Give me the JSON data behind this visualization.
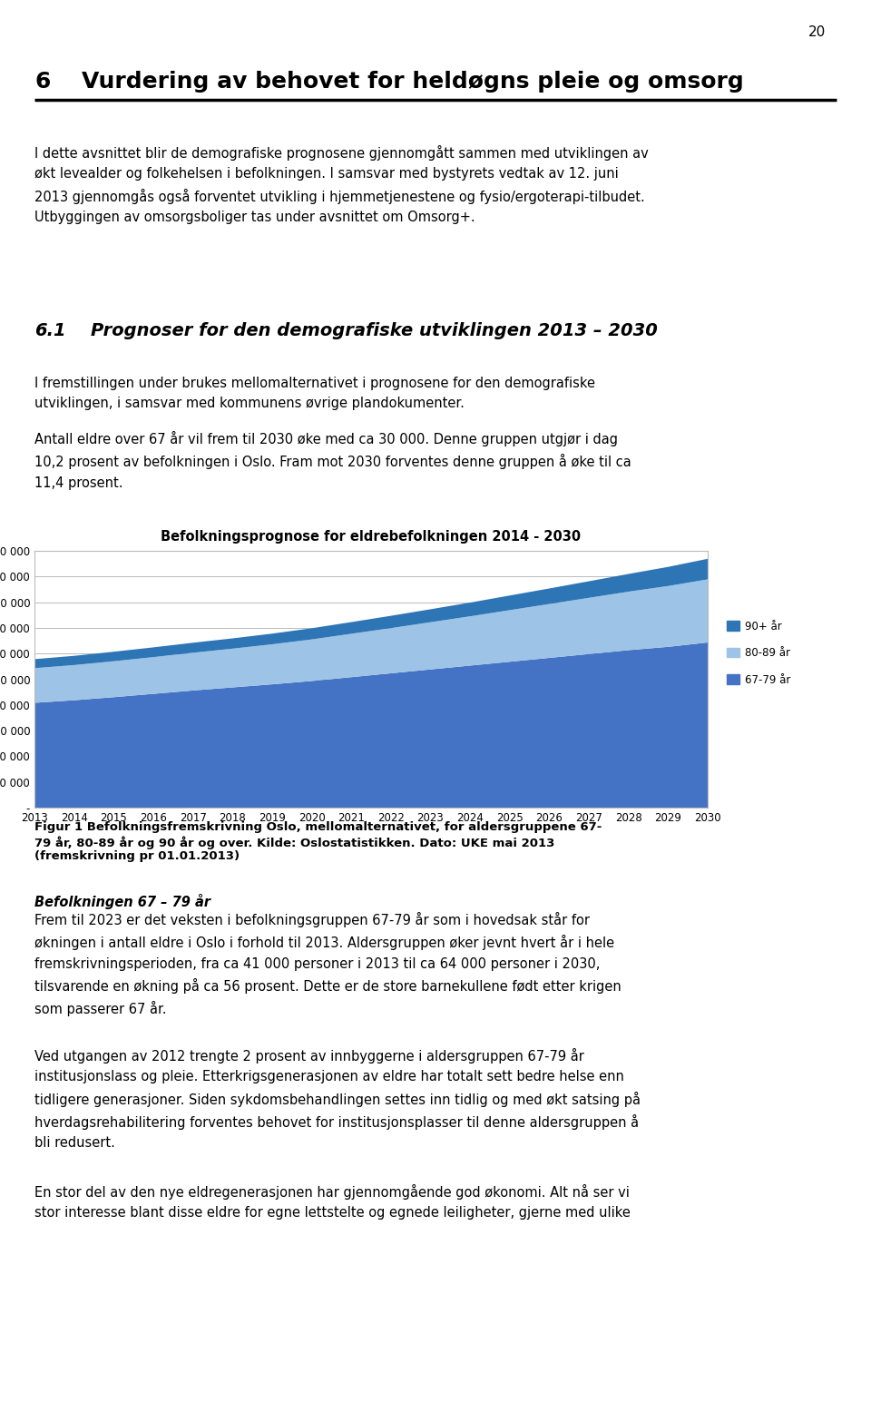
{
  "title": "Befolkningsprognose for eldrebefolkningen 2014 - 2030",
  "years": [
    2013,
    2014,
    2015,
    2016,
    2017,
    2018,
    2019,
    2020,
    2021,
    2022,
    2023,
    2024,
    2025,
    2026,
    2027,
    2028,
    2029,
    2030
  ],
  "age_67_79": [
    41000,
    42000,
    43200,
    44500,
    45800,
    47000,
    48200,
    49500,
    51000,
    52500,
    54000,
    55500,
    57000,
    58500,
    60000,
    61500,
    62800,
    64500
  ],
  "age_80_89": [
    13500,
    13700,
    14000,
    14300,
    14700,
    15100,
    15600,
    16200,
    16900,
    17600,
    18400,
    19200,
    20100,
    21000,
    21900,
    22800,
    23700,
    24600
  ],
  "age_90_plus": [
    3500,
    3600,
    3700,
    3800,
    3900,
    4000,
    4150,
    4350,
    4550,
    4800,
    5050,
    5350,
    5700,
    6050,
    6450,
    6900,
    7450,
    8000
  ],
  "color_67_79": "#4472C4",
  "color_80_89": "#9DC3E6",
  "color_90_plus": "#2E75B6",
  "ylim_max": 100000,
  "ytick_step": 10000,
  "legend_labels": [
    "90+ år",
    "80-89 år",
    "67-79 år"
  ],
  "grid_color": "#BBBBBB",
  "figure_bg": "#FFFFFF",
  "page_number": "20",
  "heading_num": "6",
  "heading_text": "Vurdering av behovet for heldøgns pleie og omsorg",
  "body1": "I dette avsnittet blir de demografiske prognosene gjennomgått sammen med utviklingen av\nøkt levealder og folkehelsen i befolkningen. I samsvar med bystyrets vedtak av 12. juni\n2013 gjennomgås også forventet utvikling i hjemmetjenestene og fysio/ergoterapi-tilbudet.\nUtbyggingen av omsorgsboliger tas under avsnittet om Omsorg+.",
  "subheading_num": "6.1",
  "subheading_text": "Prognoser for den demografiske utviklingen 2013 – 2030",
  "body2": "I fremstillingen under brukes mellomalternativet i prognosene for den demografiske\nutviklingen, i samsvar med kommunens øvrige plandokumenter.",
  "body3": "Antall eldre over 67 år vil frem til 2030 øke med ca 30 000. Denne gruppen utgjør i dag\n10,2 prosent av befolkningen i Oslo. Fram mot 2030 forventes denne gruppen å øke til ca\n11,4 prosent.",
  "caption_bold": "Figur 1 Befolkningsfremskrivning Oslo, mellomalternativet, for aldersgruppene 67-\n79 år, 80-89 år og 90 år og over.",
  "caption_normal": " Kilde: Oslostatistikken. Dato: UKE mai 2013\n(fremskrivning pr 01.01.2013)",
  "section2_header": "Befolkningen 67 – 79 år",
  "body4": "Frem til 2023 er det veksten i befolkningsgruppen 67-79 år som i hovedsak står for\nøkningen i antall eldre i Oslo i forhold til 2013. Aldersgruppen øker jevnt hvert år i hele\nfremskrivningsperioden, fra ca 41 000 personer i 2013 til ca 64 000 personer i 2030,\ntilsvarende en økning på ca 56 prosent. Dette er de store barnekullene født etter krigen\nsom passerer 67 år.",
  "body5": "Ved utgangen av 2012 trengte 2 prosent av innbyggerne i aldersgruppen 67-79 år\ninstitusjonslass og pleie. Etterkrigsgenerasjonen av eldre har totalt sett bedre helse enn\ntidligere generasjoner. Siden sykdomsbehandlingen settes inn tidlig og med økt satsing på\nhverdagsrehabilitering forventes behovet for institusjonsplasser til denne aldersgruppen å\nbli redusert.",
  "body6": "En stor del av den nye eldregenerasjonen har gjennomgående god økonomi. Alt nå ser vi\nstor interesse blant disse eldre for egne lettstelte og egnede leiligheter, gjerne med ulike"
}
